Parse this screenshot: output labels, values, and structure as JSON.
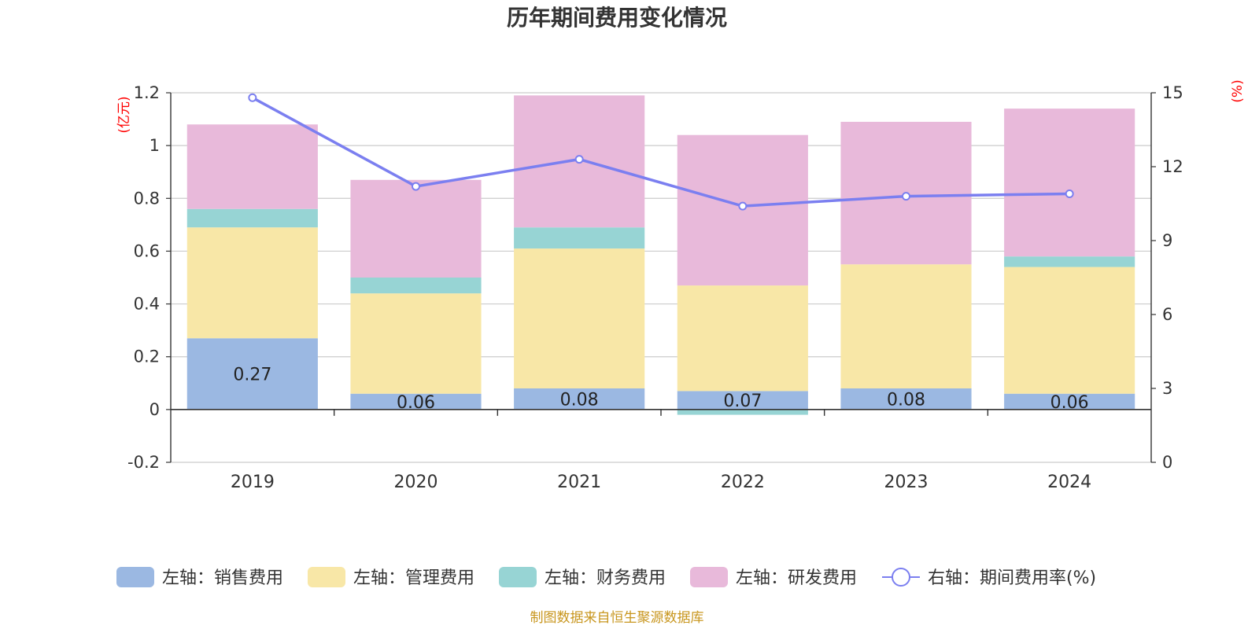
{
  "chart_data": {
    "type": "bar",
    "stacked": true,
    "title": "历年期间费用变化情况",
    "left_unit": "(亿元)",
    "right_unit": "(%)",
    "categories": [
      "2019",
      "2020",
      "2021",
      "2022",
      "2023",
      "2024"
    ],
    "y_left": {
      "min": -0.2,
      "max": 1.2,
      "ticks": [
        -0.2,
        0,
        0.2,
        0.4,
        0.6,
        0.8,
        1,
        1.2
      ]
    },
    "y_right": {
      "min": 0,
      "max": 15,
      "ticks": [
        0,
        3,
        6,
        9,
        12,
        15
      ]
    },
    "series": [
      {
        "name": "左轴：销售费用",
        "type": "bar",
        "axis": "left",
        "color": "#9bb8e2",
        "values": [
          0.27,
          0.06,
          0.08,
          0.07,
          0.08,
          0.06
        ],
        "labels": [
          "0.27",
          "0.06",
          "0.08",
          "0.07",
          "0.08",
          "0.06"
        ]
      },
      {
        "name": "左轴：管理费用",
        "type": "bar",
        "axis": "left",
        "color": "#f8e7a7",
        "values": [
          0.42,
          0.38,
          0.53,
          0.4,
          0.47,
          0.48
        ]
      },
      {
        "name": "左轴：财务费用",
        "type": "bar",
        "axis": "left",
        "color": "#97d4d4",
        "values": [
          0.07,
          0.06,
          0.08,
          -0.02,
          0.0,
          0.04
        ]
      },
      {
        "name": "左轴：研发费用",
        "type": "bar",
        "axis": "left",
        "color": "#e8b9da",
        "values": [
          0.32,
          0.37,
          0.5,
          0.57,
          0.54,
          0.56
        ]
      },
      {
        "name": "右轴：期间费用率(%)",
        "type": "line",
        "axis": "right",
        "color": "#7b7ff0",
        "values": [
          14.8,
          11.2,
          12.3,
          10.4,
          10.8,
          10.9
        ]
      }
    ],
    "grid": true,
    "legend": "bottom",
    "source": "制图数据来自恒生聚源数据库"
  }
}
